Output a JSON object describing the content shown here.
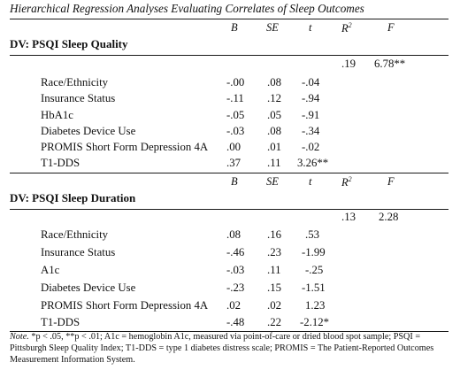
{
  "caption": "Hierarchical Regression Analyses Evaluating Correlates of Sleep Outcomes",
  "headers": {
    "b": "B",
    "se": "SE",
    "t": "t",
    "r2": "R",
    "r2_sup": "2",
    "f": "F"
  },
  "sections": [
    {
      "title": "DV: PSQI Sleep Quality",
      "r2": ".19",
      "f": "6.78**",
      "rows": [
        {
          "predictor": "Race/Ethnicity",
          "b": "-.00",
          "se": ".08",
          "t": "-.04"
        },
        {
          "predictor": "Insurance Status",
          "b": "-.11",
          "se": ".12",
          "t": "-.94"
        },
        {
          "predictor": "HbA1c",
          "b": "-.05",
          "se": ".05",
          "t": "-.91"
        },
        {
          "predictor": "Diabetes Device Use",
          "b": "-.03",
          "se": ".08",
          "t": "-.34"
        },
        {
          "predictor": "PROMIS Short Form Depression 4A",
          "b": ".00",
          "se": ".01",
          "t": "-.02"
        },
        {
          "predictor": "T1-DDS",
          "b": ".37",
          "se": ".11",
          "t": "3.26**"
        }
      ]
    },
    {
      "title": "DV: PSQI Sleep Duration",
      "r2": ".13",
      "f": "2.28",
      "rows": [
        {
          "predictor": "Race/Ethnicity",
          "b": ".08",
          "se": ".16",
          "t": ".53"
        },
        {
          "predictor": "Insurance Status",
          "b": "-.46",
          "se": ".23",
          "t": "-1.99"
        },
        {
          "predictor": "A1c",
          "b": "-.03",
          "se": ".11",
          "t": "-.25"
        },
        {
          "predictor": "Diabetes Device Use",
          "b": "-.23",
          "se": ".15",
          "t": "-1.51"
        },
        {
          "predictor": "PROMIS Short Form Depression 4A",
          "b": ".02",
          "se": ".02",
          "t": "1.23"
        },
        {
          "predictor": "T1-DDS",
          "b": "-.48",
          "se": ".22",
          "t": "-2.12*"
        }
      ]
    }
  ],
  "note": {
    "label": "Note.",
    "text": " *p < .05, **p < .01; A1c = hemoglobin A1c, measured via point-of-care or dried blood spot sample; PSQI = Pittsburgh Sleep Quality Index; T1-DDS = type 1 diabetes distress scale; PROMIS = The Patient-Reported Outcomes Measurement Information System."
  }
}
